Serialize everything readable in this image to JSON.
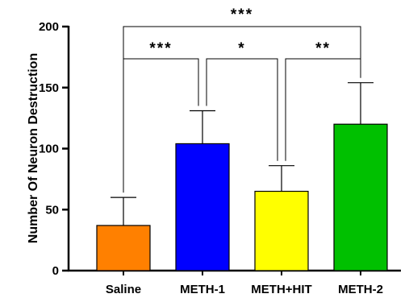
{
  "chart_data": {
    "type": "bar",
    "ylabel": "Number Of Neuron Destruction",
    "xlabel": "",
    "title": "",
    "ylim": [
      0,
      200
    ],
    "yticks": [
      0,
      50,
      100,
      150,
      200
    ],
    "grid": false,
    "categories": [
      "Saline",
      "METH-1",
      "METH+HIT",
      "METH-2"
    ],
    "values": [
      37,
      104,
      65,
      120
    ],
    "error": [
      23,
      27,
      21,
      34
    ],
    "colors": [
      "#ff8000",
      "#0000ff",
      "#ffff00",
      "#00c000"
    ],
    "significance": [
      {
        "from": 0,
        "to": 3,
        "label": "***"
      },
      {
        "from": 0,
        "to": 1,
        "label": "***"
      },
      {
        "from": 1,
        "to": 2,
        "label": "*"
      },
      {
        "from": 2,
        "to": 3,
        "label": "**"
      }
    ]
  }
}
